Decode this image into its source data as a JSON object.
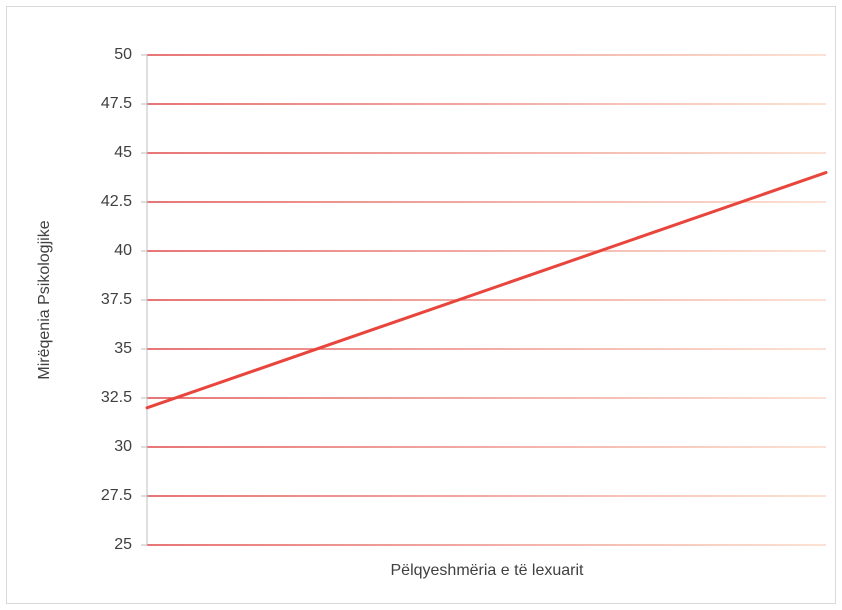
{
  "chart_data": {
    "type": "line",
    "y_label": "Mirëqenia Psikologjike",
    "x_label": "Pëlqyeshmëria e të lexuarit",
    "categories": [
      null,
      null
    ],
    "values": [
      32,
      44
    ],
    "color": "#e8453c",
    "ylim": [
      25,
      50
    ],
    "yticks": [
      25,
      27.5,
      30,
      32.5,
      35,
      37.5,
      40,
      42.5,
      45,
      47.5,
      50
    ],
    "grid": true
  }
}
